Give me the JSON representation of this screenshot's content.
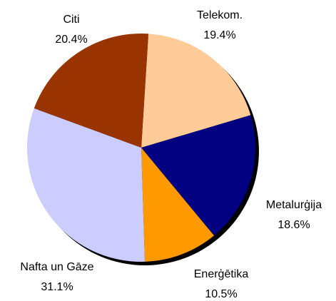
{
  "chart_data": {
    "type": "pie",
    "categories": [
      "Telekom.",
      "Metalurģija",
      "Enerģētika",
      "Nafta un Gāze",
      "Citi"
    ],
    "values": [
      19.4,
      18.6,
      10.5,
      31.1,
      20.4
    ],
    "value_labels": [
      "19.4%",
      "18.6%",
      "10.5%",
      "31.1%",
      "20.4%"
    ],
    "colors": [
      "#ffcc99",
      "#000080",
      "#ff9900",
      "#ccccff",
      "#993300"
    ]
  }
}
